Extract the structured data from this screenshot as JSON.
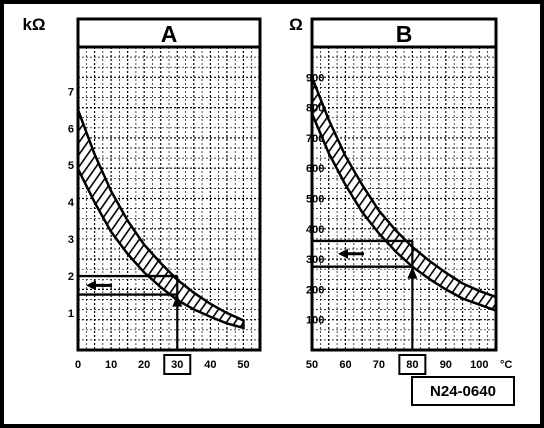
{
  "figure_id": "N24-0640",
  "colors": {
    "line": "#000000",
    "background": "#ffffff",
    "band_fill": "#000000"
  },
  "chart_data": [
    {
      "type": "area",
      "title": "A",
      "ylabel": "kΩ",
      "xlabel": "",
      "xlim": [
        0,
        55
      ],
      "ylim": [
        0,
        8.2
      ],
      "x_ticks": [
        "0",
        "10",
        "20",
        "30",
        "40",
        "50"
      ],
      "y_ticks": [
        "1",
        "2",
        "3",
        "4",
        "5",
        "6",
        "7"
      ],
      "grid": true,
      "highlighted_tick": "30",
      "band": {
        "x": [
          0,
          5,
          10,
          15,
          20,
          25,
          30,
          35,
          40,
          45,
          50
        ],
        "upper": [
          6.5,
          5.3,
          4.3,
          3.5,
          2.85,
          2.35,
          1.9,
          1.55,
          1.25,
          1.0,
          0.8
        ],
        "lower": [
          4.9,
          4.0,
          3.2,
          2.6,
          2.1,
          1.7,
          1.35,
          1.1,
          0.9,
          0.72,
          0.6
        ]
      },
      "reading": {
        "x": 30,
        "y_low": 1.5,
        "y_high": 2.0
      }
    },
    {
      "type": "area",
      "title": "B",
      "ylabel": "Ω",
      "xlabel": "°C",
      "xlim": [
        50,
        105
      ],
      "ylim": [
        0,
        1000
      ],
      "x_ticks": [
        "50",
        "60",
        "70",
        "80",
        "90",
        "100"
      ],
      "y_ticks": [
        "100",
        "200",
        "300",
        "400",
        "500",
        "600",
        "700",
        "800",
        "900"
      ],
      "grid": true,
      "highlighted_tick": "80",
      "band": {
        "x": [
          50,
          55,
          60,
          65,
          70,
          75,
          80,
          85,
          90,
          95,
          100,
          105
        ],
        "upper": [
          900,
          760,
          640,
          545,
          460,
          395,
          340,
          295,
          255,
          220,
          195,
          175
        ],
        "lower": [
          780,
          650,
          545,
          455,
          385,
          325,
          275,
          235,
          200,
          170,
          150,
          130
        ]
      },
      "reading": {
        "x": 80,
        "y_low": 275,
        "y_high": 360
      }
    }
  ]
}
